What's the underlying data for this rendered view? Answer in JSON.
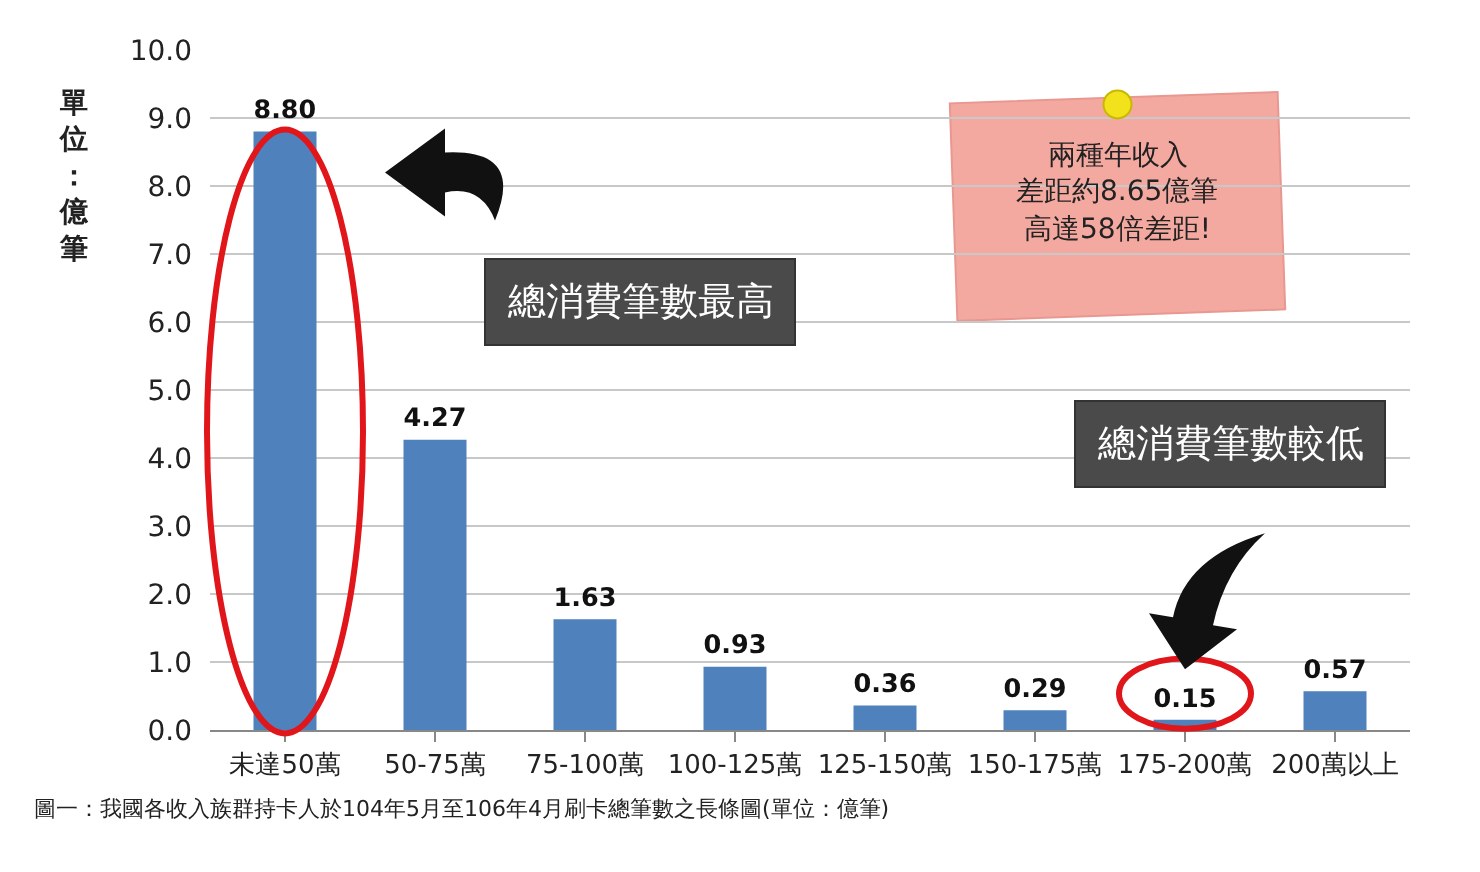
{
  "chart_data": {
    "type": "bar",
    "ylabel": "單位：億筆",
    "categories": [
      "未達50萬",
      "50-75萬",
      "75-100萬",
      "100-125萬",
      "125-150萬",
      "150-175萬",
      "175-200萬",
      "200萬以上"
    ],
    "values": [
      8.8,
      4.27,
      1.63,
      0.93,
      0.36,
      0.29,
      0.15,
      0.57
    ],
    "value_labels": [
      "8.80",
      "4.27",
      "1.63",
      "0.93",
      "0.36",
      "0.29",
      "0.15",
      "0.57"
    ],
    "color": "#4f81bd",
    "ylim": [
      0,
      10
    ],
    "yticks": [
      {
        "value": 0,
        "label": "0.0"
      },
      {
        "value": 1,
        "label": "1.0"
      },
      {
        "value": 2,
        "label": "2.0"
      },
      {
        "value": 3,
        "label": "3.0"
      },
      {
        "value": 4,
        "label": "4.0"
      },
      {
        "value": 5,
        "label": "5.0"
      },
      {
        "value": 6,
        "label": "6.0"
      },
      {
        "value": 7,
        "label": "7.0"
      },
      {
        "value": 8,
        "label": "8.0"
      },
      {
        "value": 9,
        "label": "9.0"
      },
      {
        "value": 10,
        "label": "10.0"
      }
    ],
    "grid": "y",
    "annotations": [
      "總消費筆數最高",
      "總消費筆數較低",
      "兩種年收入",
      "差距約8.65億筆",
      "高達58倍差距!",
      "圖一：我國各收入族群持卡人於104年5月至106年4月刷卡總筆數之長條圖(單位：億筆)"
    ]
  }
}
